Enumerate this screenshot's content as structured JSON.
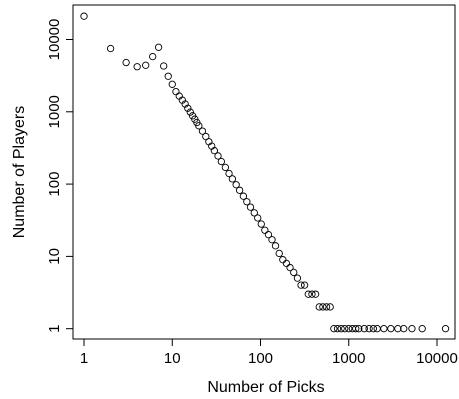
{
  "chart_data": {
    "type": "scatter",
    "title": "",
    "xlabel": "Number of Picks",
    "ylabel": "Number of Players",
    "xscale": "log",
    "yscale": "log",
    "xlim": [
      0.75,
      16000
    ],
    "ylim": [
      0.72,
      30000
    ],
    "grid": false,
    "legend": "none",
    "x_ticks": [
      1,
      10,
      100,
      1000,
      10000
    ],
    "x_tick_labels": [
      "1",
      "10",
      "100",
      "1000",
      "10000"
    ],
    "y_ticks": [
      1,
      10,
      100,
      1000,
      10000
    ],
    "y_tick_labels": [
      "1",
      "10",
      "100",
      "1000",
      "10000"
    ],
    "marker": "open-circle",
    "color": "#000000",
    "series": [
      {
        "x": [
          1,
          2,
          3,
          4,
          5,
          6,
          7,
          8,
          9,
          10,
          11,
          12,
          13,
          14,
          15,
          16,
          17,
          18,
          19,
          20,
          22,
          24,
          26,
          28,
          30,
          33,
          36,
          40,
          44,
          48,
          53,
          58,
          64,
          70,
          77,
          85,
          93,
          102,
          112,
          123,
          135,
          148,
          163,
          179,
          197,
          216,
          238,
          262,
          288,
          316,
          348,
          383,
          421,
          463,
          509,
          560,
          616,
          678,
          746,
          820,
          900,
          1000,
          1100,
          1200,
          1300,
          1500,
          1700,
          1900,
          2100,
          2500,
          3000,
          3600,
          4200,
          5200,
          6800,
          12500
        ],
        "y": [
          21000,
          7500,
          4800,
          4200,
          4400,
          5800,
          7800,
          4300,
          3100,
          2400,
          1900,
          1650,
          1450,
          1280,
          1120,
          990,
          880,
          790,
          710,
          640,
          540,
          455,
          385,
          335,
          290,
          245,
          205,
          170,
          140,
          118,
          98,
          82,
          68,
          57,
          48,
          40,
          34,
          28,
          23,
          20,
          17,
          14,
          11,
          9,
          8,
          7,
          6,
          5,
          4,
          4,
          3,
          3,
          3,
          2,
          2,
          2,
          2,
          1,
          1,
          1,
          1,
          1,
          1,
          1,
          1,
          1,
          1,
          1,
          1,
          1,
          1,
          1,
          1,
          1,
          1,
          1
        ]
      }
    ]
  }
}
